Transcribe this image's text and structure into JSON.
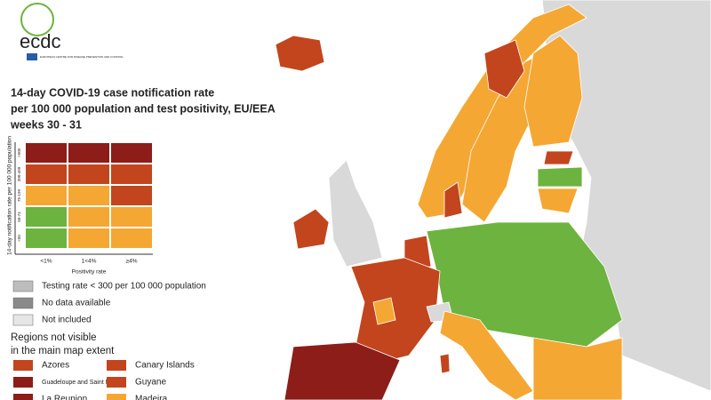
{
  "header": {
    "logo": "ecdc",
    "logo_sub": "EUROPEAN CENTRE FOR DISEASE PREVENTION AND CONTROL"
  },
  "title": [
    "14-day COVID-19 case notification rate",
    "per 100 000 population and test positivity, EU/EEA",
    "weeks 30 - 31"
  ],
  "matrix": {
    "y_axis_label": "14-day notification rate per 100 000 population",
    "row_labels": [
      ">500",
      "200-499",
      "75-199",
      "50-74",
      "<50"
    ],
    "x_labels": [
      "<1%",
      "1<4%",
      "≥4%"
    ],
    "x_axis_label": "Positivity rate",
    "cells": [
      [
        "#8c1d18",
        "#8c1d18",
        "#8c1d18"
      ],
      [
        "#c2451e",
        "#c2451e",
        "#c2451e"
      ],
      [
        "#f5a733",
        "#f5a733",
        "#c2451e"
      ],
      [
        "#6cb33f",
        "#f5a733",
        "#f5a733"
      ],
      [
        "#6cb33f",
        "#f5a733",
        "#f5a733"
      ]
    ]
  },
  "legend": [
    {
      "label": "Testing rate < 300 per 100 000 population",
      "color": "#bdbdbd"
    },
    {
      "label": "No data available",
      "color": "#8a8a8a"
    },
    {
      "label": "Not included",
      "color": "#e6e6e6"
    }
  ],
  "regions": {
    "title_lines": [
      "Regions not visible",
      "in the main map extent"
    ],
    "items": [
      {
        "name": "Azores",
        "color": "#c2451e"
      },
      {
        "name": "Canary Islands",
        "color": "#c2451e"
      },
      {
        "name": "Guadeloupe and Saint Martin",
        "color": "#8c1d18"
      },
      {
        "name": "Guyane",
        "color": "#c2451e"
      },
      {
        "name": "La Reunion",
        "color": "#8c1d18"
      },
      {
        "name": "Madeira",
        "color": "#f5a733"
      }
    ]
  }
}
